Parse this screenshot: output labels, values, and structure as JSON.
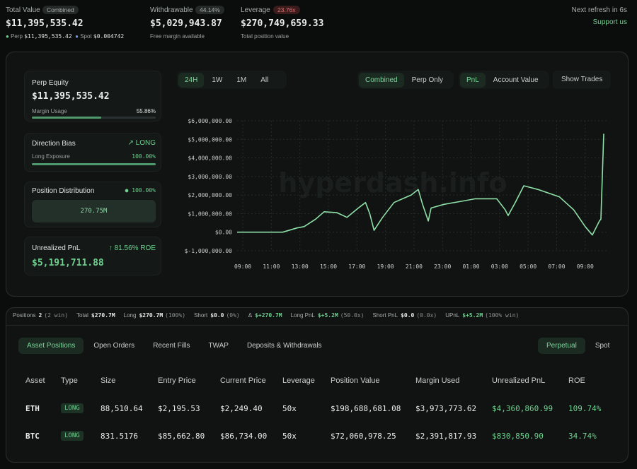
{
  "header": {
    "total": {
      "label": "Total Value",
      "badge": "Combined",
      "value": "$11,395,535.42",
      "perp_label": "Perp",
      "perp_value": "$11,395,535.42",
      "spot_label": "Spot",
      "spot_value": "$0.004742"
    },
    "withdrawable": {
      "label": "Withdrawable",
      "badge": "44.14%",
      "value": "$5,029,943.87",
      "note": "Free margin available"
    },
    "leverage": {
      "label": "Leverage",
      "badge": "23.76x",
      "value": "$270,749,659.33",
      "note": "Total position value"
    },
    "refresh": "Next refresh in 6s",
    "support": "Support us"
  },
  "cards": {
    "equity": {
      "label": "Perp Equity",
      "value": "$11,395,535.42",
      "sub_label": "Margin Usage",
      "sub_value": "55.86%"
    },
    "bias": {
      "label": "Direction Bias",
      "value": "LONG",
      "sub_label": "Long Exposure",
      "sub_value": "100.00%"
    },
    "distribution": {
      "label": "Position Distribution",
      "value": "100.00%",
      "box": "270.75M"
    },
    "pnl": {
      "label": "Unrealized PnL",
      "roe": "81.56% ROE",
      "value": "$5,191,711.88"
    }
  },
  "ranges": [
    "24H",
    "1W",
    "1M",
    "All"
  ],
  "modes": [
    "Combined",
    "Perp Only"
  ],
  "metrics": [
    "PnL",
    "Account Value"
  ],
  "show_trades": "Show Trades",
  "watermark": "hyperdash.info",
  "chart_data": {
    "type": "line",
    "color": "#8fe0a8",
    "grid": true,
    "xlim": [
      -0.4,
      25.4
    ],
    "xticks": [
      {
        "value": 0,
        "label": "09:00"
      },
      {
        "value": 2,
        "label": "11:00"
      },
      {
        "value": 4,
        "label": "13:00"
      },
      {
        "value": 6,
        "label": "15:00"
      },
      {
        "value": 8,
        "label": "17:00"
      },
      {
        "value": 10,
        "label": "19:00"
      },
      {
        "value": 12,
        "label": "21:00"
      },
      {
        "value": 14,
        "label": "23:00"
      },
      {
        "value": 16,
        "label": "01:00"
      },
      {
        "value": 18,
        "label": "03:00"
      },
      {
        "value": 20,
        "label": "05:00"
      },
      {
        "value": 22,
        "label": "07:00"
      },
      {
        "value": 24,
        "label": "09:00"
      }
    ],
    "ylim": [
      -1000000,
      6000000
    ],
    "yticks": [
      {
        "value": 6000000,
        "label": "$6,000,000.00"
      },
      {
        "value": 5000000,
        "label": "$5,000,000.00"
      },
      {
        "value": 4000000,
        "label": "$4,000,000.00"
      },
      {
        "value": 3000000,
        "label": "$3,000,000.00"
      },
      {
        "value": 2000000,
        "label": "$2,000,000.00"
      },
      {
        "value": 1000000,
        "label": "$1,000,000.00"
      },
      {
        "value": 0,
        "label": "$0.00"
      },
      {
        "value": -1000000,
        "label": "$-1,000,000.00"
      }
    ],
    "x": [
      -0.4,
      2.8,
      3.8,
      4.3,
      5.1,
      5.7,
      6.6,
      7.3,
      8.1,
      8.6,
      8.9,
      9.2,
      9.8,
      10.6,
      11.2,
      11.8,
      12.3,
      12.6,
      13.0,
      13.2,
      14.1,
      15.6,
      16.3,
      17.8,
      18.4,
      18.6,
      19.1,
      19.7,
      20.7,
      22.2,
      23.2,
      24.0,
      24.5,
      25.0,
      25.1,
      25.3
    ],
    "values": [
      0,
      0,
      230000,
      300000,
      700000,
      1100000,
      1050000,
      800000,
      1300000,
      1600000,
      1000000,
      100000,
      800000,
      1600000,
      1800000,
      2000000,
      2300000,
      1500000,
      600000,
      1300000,
      1500000,
      1700000,
      1800000,
      1800000,
      1200000,
      900000,
      1600000,
      2500000,
      2300000,
      1900000,
      1200000,
      300000,
      -150000,
      600000,
      700000,
      5300000
    ]
  },
  "stats": [
    {
      "label": "Positions",
      "value": "2",
      "note": "(2 win)"
    },
    {
      "label": "Total",
      "value": "$270.7M"
    },
    {
      "label": "Long",
      "value": "$270.7M",
      "note": "(100%)"
    },
    {
      "label": "Short",
      "value": "$0.0",
      "note": "(0%)"
    },
    {
      "label": "Δ",
      "value": "$+270.7M",
      "color": "#6fd08f"
    },
    {
      "label": "Long PnL",
      "value": "$+5.2M",
      "note": "(50.0x)",
      "color": "#6fd08f"
    },
    {
      "label": "Short PnL",
      "value": "$0.0",
      "note": "(0.0x)"
    },
    {
      "label": "UPnL",
      "value": "$+5.2M",
      "note": "(100% win)",
      "color": "#6fd08f"
    }
  ],
  "tabs": [
    "Asset Positions",
    "Open Orders",
    "Recent Fills",
    "TWAP",
    "Deposits & Withdrawals"
  ],
  "market_tabs": [
    "Perpetual",
    "Spot"
  ],
  "table": {
    "columns": [
      "Asset",
      "Type",
      "Size",
      "Entry Price",
      "Current Price",
      "Leverage",
      "Position Value",
      "Margin Used",
      "Unrealized PnL",
      "ROE"
    ],
    "rows": [
      [
        "ETH",
        "LONG",
        "88,510.64",
        "$2,195.53",
        "$2,249.40",
        "50x",
        "$198,688,681.08",
        "$3,973,773.62",
        "$4,360,860.99",
        "109.74%"
      ],
      [
        "BTC",
        "LONG",
        "831.5176",
        "$85,662.80",
        "$86,734.00",
        "50x",
        "$72,060,978.25",
        "$2,391,817.93",
        "$830,850.90",
        "34.74%"
      ]
    ]
  }
}
